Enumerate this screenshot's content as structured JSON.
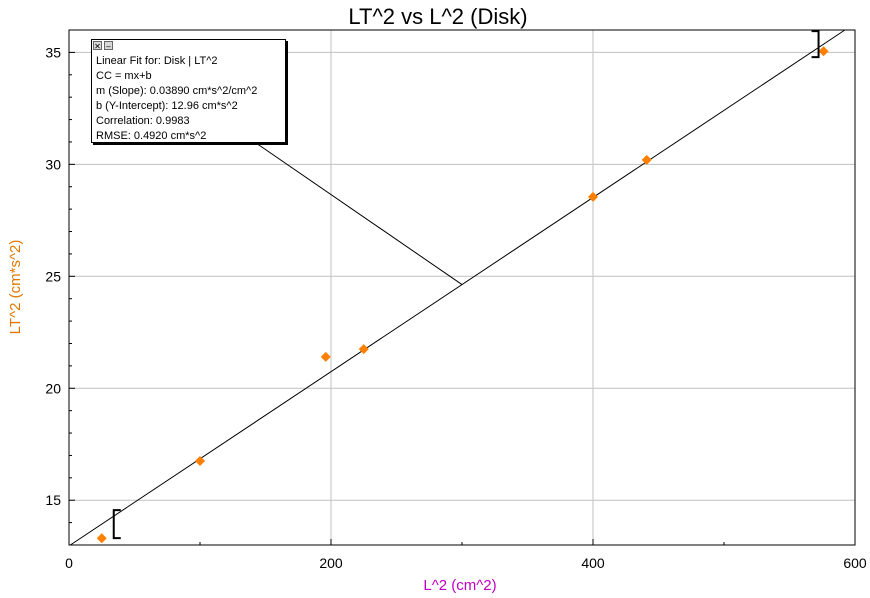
{
  "colors": {
    "points": "#ff7f00",
    "xlabel": "#c000c0",
    "ylabel": "#e07800",
    "grid": "#c0c0c0",
    "fit_line": "#000000"
  },
  "fit_box": {
    "close_icon": "close-icon",
    "minimize_icon": "minimize-icon",
    "lines": [
      "Linear Fit for: Disk | LT^2",
      "CC = mx+b",
      "m (Slope): 0.03890 cm*s^2/cm^2",
      "b (Y-Intercept): 12.96 cm*s^2",
      "Correlation: 0.9983",
      "RMSE: 0.4920 cm*s^2"
    ]
  },
  "chart_data": {
    "type": "scatter",
    "title": "LT^2 vs L^2 (Disk)",
    "xlabel": "L^2 (cm^2)",
    "ylabel": "LT^2 (cm*s^2)",
    "xlim": [
      0,
      600
    ],
    "ylim": [
      13,
      36
    ],
    "x_ticks": [
      0,
      200,
      400,
      600
    ],
    "y_ticks": [
      15,
      20,
      25,
      30,
      35
    ],
    "grid": true,
    "series": [
      {
        "x": [
          25,
          100,
          196,
          225,
          400,
          441,
          576
        ],
        "y": [
          13.3,
          16.75,
          21.4,
          21.75,
          28.55,
          30.2,
          35.05
        ]
      }
    ],
    "fit": {
      "slope": 0.0389,
      "intercept": 12.96,
      "x_range": [
        0,
        600
      ]
    },
    "fit_range_x": [
      25,
      576
    ],
    "annotation_anchor": [
      300,
      24.63
    ]
  }
}
